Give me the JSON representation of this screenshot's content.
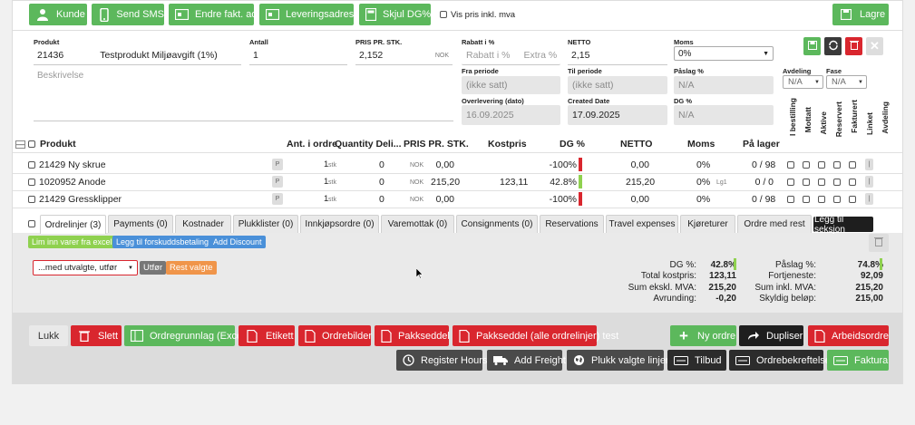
{
  "toolbar": {
    "kunde": "Kunde",
    "send_sms": "Send SMS",
    "endre_fakt": "Endre fakt. adr.",
    "leveringsadresse": "Leveringsadresse",
    "skjul_dg": "Skjul DG%",
    "vis_pris": "Vis pris inkl. mva",
    "lagre": "Lagre"
  },
  "form": {
    "produkt_label": "Produkt",
    "produkt_code": "21436",
    "produkt_name": "Testprodukt Miljøavgift (1%)",
    "antall_label": "Antall",
    "antall": "1",
    "pris_label": "PRIS PR. STK.",
    "pris": "2,152",
    "pris_currency": "NOK",
    "rabatt_label": "Rabatt i %",
    "rabatt_placeholder": "Rabatt i %",
    "extra_placeholder": "Extra %",
    "netto_label": "NETTO",
    "netto": "2,15",
    "moms_label": "Moms",
    "moms": "0%",
    "beskrivelse_placeholder": "Beskrivelse",
    "fra_periode_label": "Fra periode",
    "fra_periode": "(ikke satt)",
    "til_periode_label": "Til periode",
    "til_periode": "(ikke satt)",
    "paslag_label": "Påslag %",
    "paslag": "N/A",
    "overlevering_label": "Overlevering (dato)",
    "overlevering": "16.09.2025",
    "created_label": "Created Date",
    "created": "17.09.2025",
    "dg_label": "DG %",
    "dg": "N/A",
    "avdeling_label": "Avdeling",
    "avdeling": "N/A",
    "fase_label": "Fase",
    "fase": "N/A"
  },
  "table": {
    "headers": {
      "produkt": "Produkt",
      "ant": "Ant. i ordre",
      "qty": "Quantity Deli...",
      "pris": "PRIS PR. STK.",
      "kost": "Kostpris",
      "dg": "DG %",
      "netto": "NETTO",
      "moms": "Moms",
      "lager": "På lager"
    },
    "vertical_headers": [
      "I bestilling",
      "Mottatt",
      "Aktive",
      "Reservert",
      "Fakturert",
      "Linket",
      "Avdeling"
    ],
    "rows": [
      {
        "name": "21429 Ny skrue",
        "p": "P",
        "ant": "1",
        "unit": "stk",
        "qty": "0",
        "cur": "NOK",
        "pris": "0,00",
        "kost": "",
        "dg": "-100%",
        "dg_color": "#d9262e",
        "netto": "0,00",
        "moms": "0%",
        "lg": "",
        "lager": "0 / 98",
        "i": "|"
      },
      {
        "name": "1020952 Anode",
        "p": "P",
        "ant": "1",
        "unit": "stk",
        "qty": "0",
        "cur": "NOK",
        "pris": "215,20",
        "kost": "123,11",
        "dg": "42.8%",
        "dg_color": "#8fd14f",
        "netto": "215,20",
        "moms": "0%",
        "lg": "Lg1",
        "lager": "0 / 0",
        "i": "|"
      },
      {
        "name": "21429 Gressklipper",
        "p": "P",
        "ant": "1",
        "unit": "stk",
        "qty": "0",
        "cur": "NOK",
        "pris": "0,00",
        "kost": "",
        "dg": "-100%",
        "dg_color": "#d9262e",
        "netto": "0,00",
        "moms": "0%",
        "lg": "",
        "lager": "0 / 98",
        "i": "|"
      }
    ]
  },
  "tabs": [
    "Ordrelinjer (3)",
    "Payments (0)",
    "Kostnader",
    "Plukklister (0)",
    "Innkjøpsordre (0)",
    "Varemottak (0)",
    "Consignments (0)",
    "Reservations",
    "Travel expenses",
    "Kjøreturer",
    "Ordre med rest",
    "Legg til seksjon"
  ],
  "actions": {
    "lim_inn": "Lim inn varer fra excel",
    "forskudd": "Legg til forskuddsbetaling",
    "discount": "Add Discount",
    "select_value": "...med utvalgte, utfør",
    "utfor": "Utfør",
    "rest": "Rest valgte"
  },
  "summary_left": [
    {
      "label": "DG %:",
      "value": "42.8%"
    },
    {
      "label": "Total kostpris:",
      "value": "123,11"
    },
    {
      "label": "Sum ekskl. MVA:",
      "value": "215,20"
    },
    {
      "label": "Avrunding:",
      "value": "-0,20"
    }
  ],
  "summary_right": [
    {
      "label": "Påslag %:",
      "value": "74.8%"
    },
    {
      "label": "Fortjeneste:",
      "value": "92,09"
    },
    {
      "label": "Sum inkl. MVA:",
      "value": "215,20"
    },
    {
      "label": "Skyldig beløp:",
      "value": "215,00"
    }
  ],
  "bottom": {
    "lukk": "Lukk",
    "slett": "Slett",
    "ordregrunnlag": "Ordregrunnlag (Excel)",
    "etikett": "Etikett",
    "ordrebilder": "Ordrebilder",
    "pakkseddel": "Pakkseddel",
    "pakkseddel_alle": "Pakkseddel (alle ordrelinjer) test",
    "ny_ordre": "Ny ordre",
    "dupliser": "Dupliser",
    "arbeidsordre": "Arbeidsordre",
    "register_hours": "Register Hours",
    "add_freight": "Add Freight",
    "plukk": "Plukk valgte linjer",
    "tilbud": "Tilbud",
    "ordrebekreftelse": "Ordrebekreftelse",
    "faktura": "Faktura"
  },
  "colors": {
    "green": "#5cb85c",
    "red": "#d9262e",
    "dark": "#4a4a4a",
    "blue": "#4a90d9",
    "orange": "#f0954a"
  }
}
